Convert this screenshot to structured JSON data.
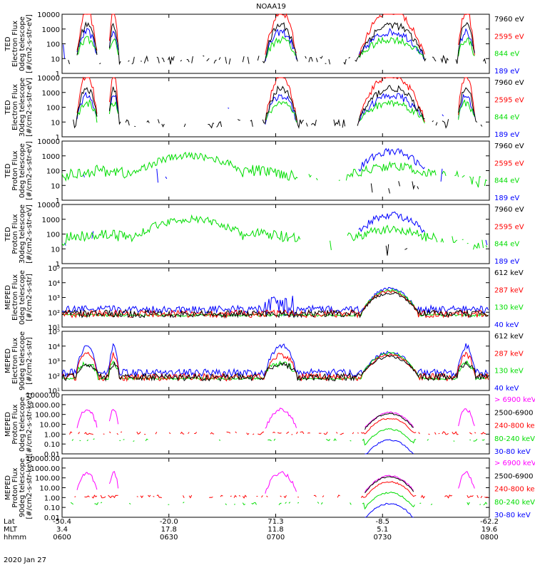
{
  "chart_data": {
    "type": "line",
    "title": "NOAA19",
    "date": "2020 Jan 27",
    "colors": {
      "black": "#000000",
      "red": "#ff0000",
      "green": "#00dd00",
      "blue": "#0000ff",
      "magenta": "#ff00ff"
    },
    "panels": [
      {
        "ylabel": [
          "TED",
          "Electron Flux",
          "0deg telescope",
          "[#/cm2-s-str-eV]"
        ],
        "yscale": "log",
        "ylim": [
          1,
          10000
        ],
        "ticks": [
          "1",
          "10",
          "100",
          "1000",
          "10000"
        ],
        "legend": [
          {
            "label": "7960 eV",
            "color": "black"
          },
          {
            "label": "2595 eV",
            "color": "red"
          },
          {
            "label": "844 eV",
            "color": "green"
          },
          {
            "label": "189 eV",
            "color": "blue"
          }
        ]
      },
      {
        "ylabel": [
          "TED",
          "Electron Flux",
          "30deg telescope",
          "[#/cm2-s-str-eV]"
        ],
        "yscale": "log",
        "ylim": [
          1,
          10000
        ],
        "ticks": [
          "1",
          "10",
          "100",
          "1000",
          "10000"
        ],
        "legend": [
          {
            "label": "7960 eV",
            "color": "black"
          },
          {
            "label": "2595 eV",
            "color": "red"
          },
          {
            "label": "844 eV",
            "color": "green"
          },
          {
            "label": "189 eV",
            "color": "blue"
          }
        ]
      },
      {
        "ylabel": [
          "TED",
          "Proton Flux",
          "0deg telescope",
          "[#/cm2-s-str-eV]"
        ],
        "yscale": "log",
        "ylim": [
          1,
          10000
        ],
        "ticks": [
          "1",
          "10",
          "100",
          "1000",
          "10000"
        ],
        "legend": [
          {
            "label": "7960 eV",
            "color": "black"
          },
          {
            "label": "2595 eV",
            "color": "red"
          },
          {
            "label": "844 eV",
            "color": "green"
          },
          {
            "label": "189 eV",
            "color": "blue"
          }
        ]
      },
      {
        "ylabel": [
          "TED",
          "Proton Flux",
          "30deg telescope",
          "[#/cm2-s-str-eV]"
        ],
        "yscale": "log",
        "ylim": [
          1,
          10000
        ],
        "ticks": [
          "1",
          "10",
          "100",
          "1000",
          "10000"
        ],
        "legend": [
          {
            "label": "7960 eV",
            "color": "black"
          },
          {
            "label": "2595 eV",
            "color": "red"
          },
          {
            "label": "844 eV",
            "color": "green"
          },
          {
            "label": "189 eV",
            "color": "blue"
          }
        ]
      },
      {
        "ylabel": [
          "MEPED",
          "Electron Flux",
          "0deg telescope",
          "[#/cm2-s-str]"
        ],
        "yscale": "log",
        "ylim": [
          10,
          100000
        ],
        "ticks": [
          "10¹",
          "10²",
          "10³",
          "10⁴",
          "10⁵"
        ],
        "legend": [
          {
            "label": "612 keV",
            "color": "black"
          },
          {
            "label": "287 keV",
            "color": "red"
          },
          {
            "label": "130 keV",
            "color": "green"
          },
          {
            "label": "40 keV",
            "color": "blue"
          }
        ]
      },
      {
        "ylabel": [
          "MEPED",
          "Electron Flux",
          "90deg telescope",
          "[#/cm2-s-str]"
        ],
        "yscale": "log",
        "ylim": [
          10,
          100000
        ],
        "ticks": [
          "10¹",
          "10²",
          "10³",
          "10⁴",
          "10⁵"
        ],
        "legend": [
          {
            "label": "612 keV",
            "color": "black"
          },
          {
            "label": "287 keV",
            "color": "red"
          },
          {
            "label": "130 keV",
            "color": "green"
          },
          {
            "label": "40 keV",
            "color": "blue"
          }
        ]
      },
      {
        "ylabel": [
          "MEPED",
          "Proton Flux",
          "0deg telescope",
          "[#/cm2-s-str-keV]"
        ],
        "yscale": "log",
        "ylim": [
          0.01,
          10000
        ],
        "ticks": [
          "0.01",
          "0.10",
          "1.00",
          "10.00",
          "100.00",
          "1000.00",
          "10000.00"
        ],
        "legend": [
          {
            "label": "> 6900 keV",
            "color": "magenta"
          },
          {
            "label": "2500-6900",
            "color": "black"
          },
          {
            "label": "240-800 ke",
            "color": "red"
          },
          {
            "label": "80-240 keV",
            "color": "green"
          },
          {
            "label": "30-80 keV",
            "color": "blue"
          }
        ]
      },
      {
        "ylabel": [
          "MEPED",
          "Proton Flux",
          "90deg telescope",
          "[#/cm2-s-str-keV]"
        ],
        "yscale": "log",
        "ylim": [
          0.01,
          10000
        ],
        "ticks": [
          "0.01",
          "0.10",
          "1.00",
          "10.00",
          "100.00",
          "1000.00",
          "10000.00"
        ],
        "legend": [
          {
            "label": "> 6900 keV",
            "color": "magenta"
          },
          {
            "label": "2500-6900",
            "color": "black"
          },
          {
            "label": "240-800 ke",
            "color": "red"
          },
          {
            "label": "80-240 keV",
            "color": "green"
          },
          {
            "label": "30-80 keV",
            "color": "blue"
          }
        ]
      }
    ],
    "xaxis": {
      "row_labels": [
        "Lat",
        "MLT",
        "hhmm"
      ],
      "ticks": [
        {
          "minutes": 0,
          "lat": "-50.4",
          "mlt": "3.4",
          "hhmm": "0600"
        },
        {
          "minutes": 30,
          "lat": "-20.0",
          "mlt": "17.8",
          "hhmm": "0630"
        },
        {
          "minutes": 60,
          "lat": "71.3",
          "mlt": "11.8",
          "hhmm": "0700"
        },
        {
          "minutes": 90,
          "lat": "-8.5",
          "mlt": "5.1",
          "hhmm": "0730"
        },
        {
          "minutes": 120,
          "lat": "-62.2",
          "mlt": "19.6",
          "hhmm": "0800"
        }
      ],
      "range_minutes": [
        0,
        120
      ]
    },
    "regions": {
      "pass1": {
        "start_min": 4,
        "end_min": 10
      },
      "pass1b": {
        "start_min": 13,
        "end_min": 16
      },
      "north": {
        "start_min": 57,
        "end_min": 66
      },
      "south": {
        "start_min": 83,
        "end_min": 102
      },
      "pass4": {
        "start_min": 111,
        "end_min": 116
      }
    }
  }
}
